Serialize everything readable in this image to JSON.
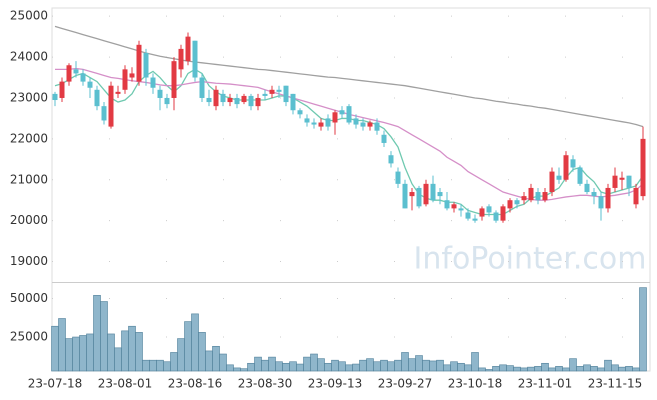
{
  "watermark": "InfoPointer.com",
  "chart_data": [
    {
      "type": "candlestick",
      "ylim": [
        18500,
        25200
      ],
      "yticks": [
        19000,
        20000,
        21000,
        22000,
        23000,
        24000,
        25000
      ],
      "grid": true,
      "up_color": "#e23a43",
      "down_color": "#5bbfcf",
      "open": [
        23100,
        23000,
        23400,
        23700,
        23600,
        23400,
        23200,
        22800,
        22300,
        23100,
        23200,
        23500,
        23400,
        24100,
        23500,
        23200,
        23000,
        23000,
        23700,
        23900,
        24400,
        23500,
        23000,
        22800,
        23100,
        22900,
        23000,
        22900,
        23050,
        22800,
        23100,
        23100,
        23200,
        23300,
        23100,
        22700,
        22500,
        22400,
        22300,
        22500,
        22400,
        22700,
        22800,
        22500,
        22400,
        22300,
        22400,
        22100,
        21600,
        21200,
        20900,
        20600,
        20800,
        20400,
        20900,
        20700,
        20500,
        20300,
        20300,
        20200,
        20050,
        20100,
        20350,
        20200,
        20000,
        20300,
        20500,
        20500,
        20500,
        20700,
        20500,
        20700,
        21100,
        21000,
        21500,
        21300,
        20900,
        20700,
        20600,
        20300,
        20800,
        21000,
        21100,
        20400,
        20600
      ],
      "close": [
        22950,
        23400,
        23800,
        23600,
        23400,
        23250,
        22800,
        22450,
        23300,
        23150,
        23700,
        23600,
        24300,
        23500,
        23250,
        23000,
        22850,
        23900,
        24200,
        24500,
        23500,
        23000,
        22900,
        23200,
        22900,
        23000,
        22850,
        23050,
        22800,
        23000,
        23050,
        23200,
        23150,
        22900,
        22700,
        22600,
        22400,
        22350,
        22400,
        22300,
        22650,
        22600,
        22400,
        22350,
        22300,
        22400,
        22200,
        21900,
        21400,
        20900,
        20300,
        20700,
        20350,
        20900,
        20500,
        20600,
        20300,
        20400,
        20250,
        20050,
        20000,
        20300,
        20200,
        20000,
        20350,
        20500,
        20400,
        20600,
        20800,
        20500,
        20700,
        21200,
        21000,
        21600,
        21300,
        20900,
        20700,
        20600,
        20300,
        20800,
        21100,
        21050,
        20800,
        20800,
        22000
      ],
      "high": [
        23150,
        23500,
        23850,
        23900,
        23700,
        23500,
        23300,
        22900,
        23400,
        23300,
        23800,
        23750,
        24400,
        24200,
        23600,
        23300,
        23100,
        24000,
        24300,
        24600,
        24400,
        23600,
        23200,
        23300,
        23200,
        23100,
        23100,
        23100,
        23100,
        23100,
        23200,
        23300,
        23300,
        23300,
        23100,
        22750,
        22600,
        22500,
        22500,
        22600,
        22700,
        22800,
        22850,
        22600,
        22500,
        22450,
        22500,
        22200,
        21700,
        21300,
        21000,
        20800,
        20850,
        21000,
        21100,
        20800,
        20700,
        20450,
        20400,
        20300,
        20150,
        20350,
        20400,
        20250,
        20400,
        20550,
        20550,
        20700,
        20900,
        20800,
        20800,
        21300,
        21300,
        21700,
        21600,
        21350,
        21000,
        20800,
        20700,
        20900,
        21300,
        21200,
        21100,
        20900,
        22300
      ],
      "low": [
        22800,
        22900,
        23300,
        23500,
        23300,
        23000,
        22700,
        22350,
        22250,
        23000,
        23100,
        23400,
        23300,
        23300,
        23100,
        22700,
        22750,
        22700,
        23500,
        23800,
        23400,
        22900,
        22800,
        22700,
        22800,
        22800,
        22750,
        22850,
        22700,
        22700,
        22950,
        23000,
        23000,
        22800,
        22600,
        22500,
        22300,
        22250,
        22200,
        22200,
        22100,
        22500,
        22350,
        22250,
        22200,
        22200,
        22100,
        21800,
        21300,
        20800,
        20300,
        20250,
        20300,
        20350,
        20450,
        20400,
        20250,
        20200,
        20100,
        20000,
        19950,
        20000,
        20100,
        19950,
        19950,
        20200,
        20300,
        20400,
        20450,
        20400,
        20450,
        20600,
        20900,
        20950,
        21200,
        20850,
        20650,
        20400,
        20000,
        20200,
        20700,
        20750,
        20600,
        20300,
        20500
      ],
      "lines": [
        {
          "color": "#6fc9b0",
          "values": [
            23300,
            23350,
            23450,
            23550,
            23600,
            23500,
            23400,
            23200,
            23000,
            22900,
            22950,
            23100,
            23400,
            23550,
            23650,
            23500,
            23300,
            23150,
            23300,
            23600,
            23700,
            23600,
            23300,
            23150,
            23050,
            23000,
            22950,
            22950,
            22950,
            22950,
            22950,
            23000,
            23050,
            23050,
            23000,
            22900,
            22800,
            22650,
            22500,
            22450,
            22450,
            22500,
            22500,
            22450,
            22450,
            22400,
            22350,
            22250,
            22050,
            21800,
            21300,
            20900,
            20650,
            20550,
            20500,
            20500,
            20450,
            20450,
            20400,
            20250,
            20200,
            20150,
            20150,
            20150,
            20150,
            20250,
            20350,
            20400,
            20550,
            20600,
            20600,
            20700,
            20800,
            21050,
            21250,
            21300,
            21100,
            20950,
            20700,
            20650,
            20700,
            20750,
            20800,
            20850,
            21100
          ]
        },
        {
          "color": "#d58fc8",
          "values": [
            23700,
            23700,
            23700,
            23720,
            23700,
            23650,
            23600,
            23550,
            23500,
            23480,
            23450,
            23420,
            23400,
            23380,
            23350,
            23320,
            23300,
            23300,
            23320,
            23350,
            23380,
            23400,
            23380,
            23360,
            23350,
            23340,
            23320,
            23300,
            23280,
            23260,
            23200,
            23150,
            23100,
            23050,
            23000,
            22950,
            22900,
            22850,
            22800,
            22750,
            22700,
            22650,
            22600,
            22560,
            22520,
            22480,
            22440,
            22400,
            22350,
            22300,
            22200,
            22100,
            22000,
            21900,
            21800,
            21700,
            21550,
            21450,
            21350,
            21200,
            21100,
            21000,
            20900,
            20800,
            20700,
            20650,
            20600,
            20550,
            20520,
            20500,
            20500,
            20520,
            20550,
            20580,
            20600,
            20620,
            20620,
            20600,
            20580,
            20600,
            20620,
            20650,
            20680,
            20750,
            20900
          ]
        },
        {
          "color": "#a0a0a0",
          "values": [
            24750,
            24700,
            24650,
            24600,
            24550,
            24500,
            24450,
            24400,
            24350,
            24300,
            24250,
            24200,
            24150,
            24100,
            24060,
            24020,
            23990,
            23960,
            23930,
            23900,
            23880,
            23860,
            23840,
            23820,
            23800,
            23780,
            23760,
            23740,
            23720,
            23700,
            23690,
            23670,
            23650,
            23630,
            23610,
            23590,
            23570,
            23550,
            23530,
            23510,
            23500,
            23480,
            23460,
            23440,
            23420,
            23400,
            23380,
            23360,
            23340,
            23320,
            23300,
            23270,
            23240,
            23210,
            23180,
            23150,
            23120,
            23090,
            23060,
            23030,
            23000,
            22980,
            22950,
            22920,
            22900,
            22870,
            22850,
            22820,
            22800,
            22770,
            22750,
            22720,
            22690,
            22660,
            22630,
            22600,
            22570,
            22540,
            22510,
            22480,
            22450,
            22420,
            22390,
            22350,
            22300
          ]
        }
      ]
    },
    {
      "type": "bar",
      "ylim": [
        3000,
        60000
      ],
      "yticks": [
        25000,
        50000
      ],
      "grid": true,
      "color": "#8fb6cb",
      "categories": [
        "23-07-18",
        null,
        null,
        null,
        null,
        null,
        null,
        null,
        null,
        null,
        "23-08-01",
        null,
        null,
        null,
        null,
        null,
        null,
        null,
        null,
        null,
        "23-08-16",
        null,
        null,
        null,
        null,
        null,
        null,
        null,
        null,
        null,
        "23-08-30",
        null,
        null,
        null,
        null,
        null,
        null,
        null,
        null,
        null,
        "23-09-13",
        null,
        null,
        null,
        null,
        null,
        null,
        null,
        null,
        null,
        "23-09-27",
        null,
        null,
        null,
        null,
        null,
        null,
        null,
        null,
        null,
        "23-10-18",
        null,
        null,
        null,
        null,
        null,
        null,
        null,
        null,
        null,
        "23-11-01",
        null,
        null,
        null,
        null,
        null,
        null,
        null,
        null,
        null,
        "23-11-15",
        null,
        null,
        null,
        null
      ],
      "values": [
        32000,
        37000,
        24000,
        25000,
        26000,
        27000,
        52000,
        48000,
        27000,
        18000,
        29000,
        32000,
        28000,
        10000,
        10000,
        10000,
        9000,
        15000,
        24000,
        35000,
        40000,
        28000,
        16000,
        19000,
        14000,
        7000,
        5000,
        4500,
        8000,
        12000,
        10000,
        12000,
        9000,
        8000,
        9000,
        7500,
        12000,
        14000,
        11000,
        8000,
        10000,
        9000,
        7000,
        7500,
        10000,
        11000,
        9000,
        10000,
        9000,
        10000,
        15000,
        11000,
        13000,
        10000,
        9500,
        10000,
        7000,
        9000,
        8000,
        7000,
        15000,
        5000,
        4000,
        6000,
        7000,
        6500,
        5500,
        5000,
        5500,
        6000,
        8000,
        5000,
        6000,
        5000,
        11000,
        6000,
        7000,
        6000,
        5000,
        10000,
        7000,
        5500,
        6000,
        5000,
        57000
      ]
    }
  ]
}
